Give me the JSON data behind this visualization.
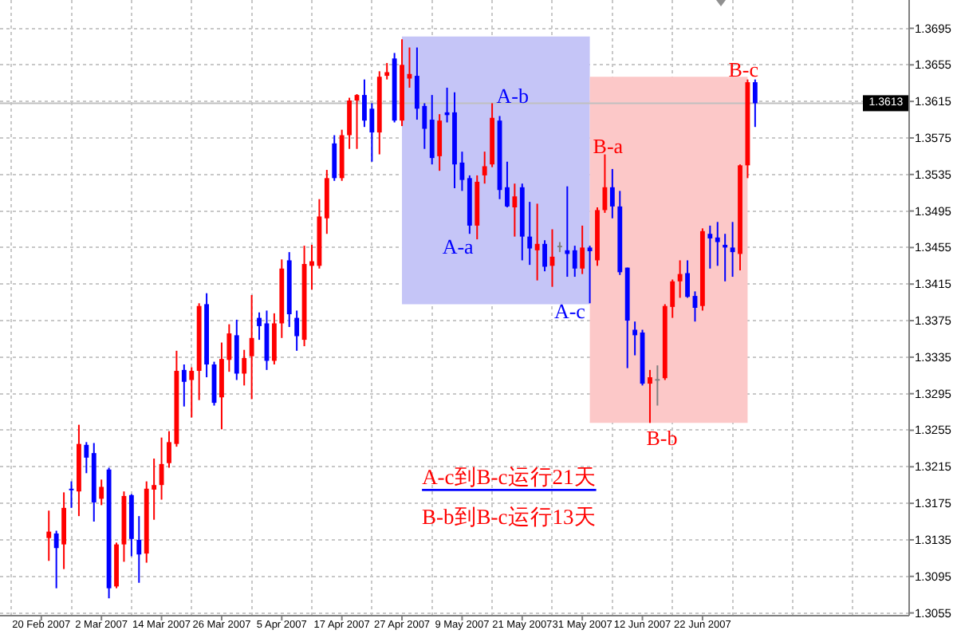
{
  "chart_data": {
    "type": "candlestick",
    "categories": [
      "20 Feb 2007",
      null,
      null,
      null,
      null,
      null,
      null,
      null,
      "2 Mar 2007",
      null,
      null,
      null,
      null,
      null,
      null,
      null,
      "14 Mar 2007",
      null,
      null,
      null,
      null,
      null,
      null,
      null,
      "26 Mar 2007",
      null,
      null,
      null,
      null,
      null,
      null,
      null,
      "5 Apr 2007",
      null,
      null,
      null,
      null,
      null,
      null,
      null,
      "17 Apr 2007",
      null,
      null,
      null,
      null,
      null,
      null,
      null,
      "27 Apr 2007",
      null,
      null,
      null,
      null,
      null,
      null,
      null,
      "9 May 2007",
      null,
      null,
      null,
      null,
      null,
      null,
      null,
      "21 May 2007",
      null,
      null,
      null,
      null,
      null,
      null,
      null,
      "31 May 2007",
      null,
      null,
      null,
      null,
      null,
      null,
      null,
      "12 Jun 2007",
      null,
      null,
      null,
      null,
      null,
      null,
      null,
      "22 Jun 2007",
      null,
      null,
      null,
      null,
      null,
      null,
      null,
      null,
      null,
      null,
      null,
      null,
      null,
      null,
      null,
      null,
      null,
      null,
      null,
      null,
      null,
      null,
      null,
      null,
      null,
      null,
      null
    ],
    "ohlc": [
      null,
      [
        1.3137,
        1.3167,
        1.3112,
        1.3144
      ],
      [
        1.3142,
        1.3145,
        1.3082,
        1.3126
      ],
      [
        1.313,
        1.3187,
        1.3103,
        1.317
      ],
      [
        1.3191,
        1.3199,
        1.317,
        1.319
      ],
      [
        1.3188,
        1.3261,
        1.3161,
        1.324
      ],
      [
        1.3239,
        1.3242,
        1.3208,
        1.3225
      ],
      [
        1.323,
        1.3241,
        1.3155,
        1.3176
      ],
      [
        1.318,
        1.3201,
        1.3173,
        1.3193
      ],
      [
        1.3212,
        1.3214,
        1.3071,
        1.3082
      ],
      [
        1.3084,
        1.3132,
        1.3082,
        1.313
      ],
      [
        1.313,
        1.3188,
        1.3111,
        1.3183
      ],
      [
        1.3184,
        1.3185,
        1.3117,
        1.3136
      ],
      [
        1.3135,
        1.3161,
        1.3088,
        1.3119
      ],
      [
        1.312,
        1.3199,
        1.311,
        1.3191
      ],
      [
        1.319,
        1.3224,
        1.3157,
        1.3195
      ],
      [
        1.3195,
        1.3247,
        1.3179,
        1.3218
      ],
      [
        1.3219,
        1.3254,
        1.3214,
        1.3242
      ],
      [
        1.324,
        1.3342,
        1.3237,
        1.332
      ],
      [
        1.3321,
        1.3327,
        1.3281,
        1.3308
      ],
      [
        1.331,
        1.3324,
        1.3269,
        1.332
      ],
      [
        1.332,
        1.3394,
        1.3288,
        1.3391
      ],
      [
        1.3393,
        1.3405,
        1.3313,
        1.3327
      ],
      [
        1.3327,
        1.333,
        1.3282,
        1.3285
      ],
      [
        1.3291,
        1.3351,
        1.3256,
        1.3333
      ],
      [
        1.3332,
        1.3371,
        1.3319,
        1.3361
      ],
      [
        1.3359,
        1.3376,
        1.331,
        1.3317
      ],
      [
        1.3317,
        1.3343,
        1.3304,
        1.3334
      ],
      [
        1.3336,
        1.3403,
        1.3289,
        1.3356
      ],
      [
        1.3378,
        1.3384,
        1.3354,
        1.3369
      ],
      [
        1.3372,
        1.3386,
        1.3321,
        1.3331
      ],
      [
        1.3331,
        1.3383,
        1.3327,
        1.3372
      ],
      [
        1.3372,
        1.3442,
        1.3356,
        1.3432
      ],
      [
        1.3441,
        1.345,
        1.3368,
        1.3382
      ],
      [
        1.3378,
        1.3386,
        1.3342,
        1.3358
      ],
      [
        1.3354,
        1.3457,
        1.3347,
        1.3437
      ],
      [
        1.3435,
        1.3458,
        1.3409,
        1.344
      ],
      [
        1.3435,
        1.3508,
        1.3432,
        1.3489
      ],
      [
        1.3487,
        1.354,
        1.347,
        1.3531
      ],
      [
        1.3569,
        1.3578,
        1.3528,
        1.3531
      ],
      [
        1.3531,
        1.3584,
        1.3528,
        1.3578
      ],
      [
        1.3578,
        1.3619,
        1.3563,
        1.3616
      ],
      [
        1.3616,
        1.3623,
        1.3563,
        1.3622
      ],
      [
        1.3622,
        1.3639,
        1.3587,
        1.3594
      ],
      [
        1.3607,
        1.3613,
        1.3549,
        1.3581
      ],
      [
        1.3581,
        1.3648,
        1.3557,
        1.3642
      ],
      [
        1.3643,
        1.3657,
        1.3639,
        1.3647
      ],
      [
        1.3662,
        1.3668,
        1.3592,
        1.3594
      ],
      [
        1.3594,
        1.3683,
        1.3588,
        1.3655
      ],
      [
        1.364,
        1.3674,
        1.363,
        1.3645
      ],
      [
        1.3643,
        1.3674,
        1.3595,
        1.3607
      ],
      [
        1.361,
        1.3613,
        1.3563,
        1.3585
      ],
      [
        1.3595,
        1.3622,
        1.3546,
        1.3553
      ],
      [
        1.3555,
        1.3601,
        1.3539,
        1.3594
      ],
      [
        1.3603,
        1.363,
        1.3592,
        1.36
      ],
      [
        1.3603,
        1.3625,
        1.352,
        1.3546
      ],
      [
        1.3548,
        1.356,
        1.3517,
        1.3529
      ],
      [
        1.3531,
        1.3534,
        1.347,
        1.3479
      ],
      [
        1.3479,
        1.3534,
        1.3464,
        1.3527
      ],
      [
        1.3534,
        1.356,
        1.3525,
        1.3544
      ],
      [
        1.3546,
        1.3613,
        1.3543,
        1.3597
      ],
      [
        1.3594,
        1.3599,
        1.3508,
        1.3518
      ],
      [
        1.3521,
        1.3549,
        1.3499,
        1.35
      ],
      [
        1.3499,
        1.3525,
        1.3467,
        1.3511
      ],
      [
        1.3521,
        1.3525,
        1.3441,
        1.3467
      ],
      [
        1.3467,
        1.3505,
        1.3436,
        1.3454
      ],
      [
        1.3452,
        1.3503,
        1.3419,
        1.3459
      ],
      [
        1.3459,
        1.3463,
        1.3429,
        1.3434
      ],
      [
        1.3435,
        1.3475,
        1.3412,
        1.3445
      ],
      [
        1.3457,
        1.3461,
        1.345,
        1.3457
      ],
      [
        1.3452,
        1.3522,
        1.3423,
        1.3448
      ],
      [
        1.3452,
        1.3457,
        1.3423,
        1.3432
      ],
      [
        1.3432,
        1.3479,
        1.3426,
        1.3455
      ],
      [
        1.3455,
        1.3457,
        1.3394,
        1.3451
      ],
      [
        1.3441,
        1.3499,
        1.3435,
        1.3496
      ],
      [
        1.3496,
        1.3557,
        1.3493,
        1.3521
      ],
      [
        1.3521,
        1.3541,
        1.3487,
        1.35
      ],
      [
        1.35,
        1.3517,
        1.3425,
        1.3428
      ],
      [
        1.3433,
        1.3433,
        1.3323,
        1.3375
      ],
      [
        1.3365,
        1.3374,
        1.3337,
        1.3359
      ],
      [
        1.3362,
        1.3365,
        1.3304,
        1.3306
      ],
      [
        1.3306,
        1.3321,
        1.3263,
        1.3313
      ],
      [
        1.3311,
        1.3326,
        1.3282,
        1.3311
      ],
      [
        1.3312,
        1.3393,
        1.331,
        1.3391
      ],
      [
        1.339,
        1.342,
        1.3378,
        1.3418
      ],
      [
        1.3418,
        1.3441,
        1.34,
        1.3426
      ],
      [
        1.3427,
        1.3441,
        1.34,
        1.3401
      ],
      [
        1.3402,
        1.3407,
        1.3374,
        1.3389
      ],
      [
        1.3391,
        1.3476,
        1.3386,
        1.3473
      ],
      [
        1.347,
        1.3479,
        1.3432,
        1.3465
      ],
      [
        1.3466,
        1.3483,
        1.3435,
        1.3461
      ],
      [
        1.3458,
        1.347,
        1.3418,
        1.3455
      ],
      [
        1.3455,
        1.3483,
        1.3423,
        1.345
      ],
      [
        1.3448,
        1.3546,
        1.343,
        1.3545
      ],
      [
        1.3545,
        1.3639,
        1.3531,
        1.3636
      ],
      [
        1.3636,
        1.3639,
        1.3587,
        1.3613
      ],
      null,
      null,
      null,
      null,
      null,
      null,
      null,
      null,
      null,
      null,
      null,
      null,
      null,
      null,
      null,
      null,
      null,
      null,
      null,
      null
    ],
    "colors": [
      null,
      "#ff0000",
      "#0000ff",
      "#ff0000",
      "#0000ff",
      "#ff0000",
      "#0000ff",
      "#0000ff",
      "#ff0000",
      "#0000ff",
      "#ff0000",
      "#ff0000",
      "#0000ff",
      "#0000ff",
      "#ff0000",
      "#ff0000",
      "#ff0000",
      "#ff0000",
      "#ff0000",
      "#0000ff",
      "#ff0000",
      "#ff0000",
      "#0000ff",
      "#0000ff",
      "#ff0000",
      "#ff0000",
      "#0000ff",
      "#ff0000",
      "#ff0000",
      "#0000ff",
      "#0000ff",
      "#ff0000",
      "#ff0000",
      "#0000ff",
      "#0000ff",
      "#ff0000",
      "#ff0000",
      "#ff0000",
      "#ff0000",
      "#0000ff",
      "#ff0000",
      "#ff0000",
      "#ff0000",
      "#0000ff",
      "#0000ff",
      "#ff0000",
      "#ff0000",
      "#0000ff",
      "#ff0000",
      "#ff0000",
      "#0000ff",
      "#0000ff",
      "#0000ff",
      "#ff0000",
      "#0000ff",
      "#0000ff",
      "#0000ff",
      "#0000ff",
      "#ff0000",
      "#ff0000",
      "#ff0000",
      "#0000ff",
      "#0000ff",
      "#ff0000",
      "#0000ff",
      "#0000ff",
      "#ff0000",
      "#0000ff",
      "#ff0000",
      "#808080",
      "#0000ff",
      "#0000ff",
      "#ff0000",
      "#0000ff",
      "#ff0000",
      "#ff0000",
      "#0000ff",
      "#0000ff",
      "#0000ff",
      "#0000ff",
      "#0000ff",
      "#ff0000",
      "#808080",
      "#ff0000",
      "#ff0000",
      "#ff0000",
      "#0000ff",
      "#0000ff",
      "#ff0000",
      "#0000ff",
      "#0000ff",
      "#0000ff",
      "#0000ff",
      "#ff0000",
      "#ff0000",
      "#0000ff",
      null,
      null,
      null,
      null,
      null,
      null,
      null,
      null,
      null,
      null,
      null,
      null,
      null,
      null,
      null,
      null,
      null,
      null,
      null,
      null
    ],
    "series": [
      {
        "type": "line",
        "color": "#c5c5f7",
        "values": [
          null,
          null,
          null,
          null,
          null,
          null,
          null,
          null,
          null,
          null,
          null,
          null,
          null,
          null,
          null,
          null,
          null,
          null,
          null,
          null,
          null,
          null,
          null,
          null,
          null,
          null,
          null,
          null,
          null,
          null,
          null,
          null,
          null,
          null,
          null,
          null,
          null,
          null,
          null,
          null,
          null,
          null,
          null,
          null,
          null,
          null,
          null,
          null,
          null,
          null,
          null,
          null,
          null,
          null,
          null,
          null,
          null,
          null,
          null,
          null,
          null,
          null,
          null,
          null,
          null,
          null,
          null,
          null,
          null,
          null,
          null,
          null,
          null,
          null,
          null,
          null,
          null,
          null,
          null,
          null,
          null,
          null,
          null,
          null,
          null,
          null,
          null,
          null,
          null,
          null,
          null,
          null,
          null,
          null,
          null,
          null,
          null,
          null,
          null,
          null,
          null,
          null,
          null,
          null,
          null,
          null,
          null,
          null,
          null,
          null,
          null,
          null,
          null,
          null,
          null,
          null
        ],
        "lower": [
          null,
          null,
          null,
          null,
          null,
          null,
          null,
          null,
          null,
          null,
          null,
          null,
          null,
          null,
          null,
          null,
          null,
          null,
          null,
          null,
          null,
          null,
          null,
          null,
          null,
          null,
          null,
          null,
          null,
          null,
          null,
          null,
          null,
          null,
          null,
          null,
          null,
          null,
          null,
          null,
          null,
          null,
          null,
          null,
          null,
          null,
          null,
          null,
          1.3393,
          1.3393,
          1.3393,
          1.3393,
          1.3393,
          1.3393,
          1.3393,
          1.3393,
          1.3393,
          1.3393,
          1.3393,
          1.3393,
          1.3393,
          1.3393,
          1.3393,
          1.3393,
          1.3393,
          1.3393,
          1.3393,
          1.3393,
          1.3393,
          1.3393,
          1.3393,
          1.3393,
          1.3393,
          1.3393,
          null,
          null,
          null,
          null,
          null,
          null,
          null,
          null,
          null,
          null,
          null,
          null,
          null,
          null,
          null,
          null,
          null,
          null,
          null,
          null,
          null,
          null,
          null,
          null,
          null,
          null,
          null,
          null,
          null,
          null,
          null,
          null,
          null,
          null,
          null,
          null,
          null,
          null,
          null,
          null,
          null,
          null
        ],
        "upper": [
          null,
          null,
          null,
          null,
          null,
          null,
          null,
          null,
          null,
          null,
          null,
          null,
          null,
          null,
          null,
          null,
          null,
          null,
          null,
          null,
          null,
          null,
          null,
          null,
          null,
          null,
          null,
          null,
          null,
          null,
          null,
          null,
          null,
          null,
          null,
          null,
          null,
          null,
          null,
          null,
          null,
          null,
          null,
          null,
          null,
          null,
          null,
          null,
          1.3686,
          1.3686,
          1.3686,
          1.3686,
          1.3686,
          1.3686,
          1.3686,
          1.3686,
          1.3686,
          1.3686,
          1.3686,
          1.3686,
          1.3686,
          1.3686,
          1.3686,
          1.3686,
          1.3686,
          1.3686,
          1.3686,
          1.3686,
          1.3686,
          1.3686,
          1.3686,
          1.3686,
          1.3686,
          1.3686,
          null,
          null,
          null,
          null,
          null,
          null,
          null,
          null,
          null,
          null,
          null,
          null,
          null,
          null,
          null,
          null,
          null,
          null,
          null,
          null,
          null,
          null,
          null,
          null,
          null,
          null,
          null,
          null,
          null,
          null,
          null,
          null,
          null,
          null,
          null,
          null,
          null,
          null,
          null,
          null,
          null,
          null
        ]
      },
      {
        "type": "line",
        "color": "#fcc8c8",
        "values": [
          null,
          null,
          null,
          null,
          null,
          null,
          null,
          null,
          null,
          null,
          null,
          null,
          null,
          null,
          null,
          null,
          null,
          null,
          null,
          null,
          null,
          null,
          null,
          null,
          null,
          null,
          null,
          null,
          null,
          null,
          null,
          null,
          null,
          null,
          null,
          null,
          null,
          null,
          null,
          null,
          null,
          null,
          null,
          null,
          null,
          null,
          null,
          null,
          null,
          null,
          null,
          null,
          null,
          null,
          null,
          null,
          null,
          null,
          null,
          null,
          null,
          null,
          null,
          null,
          null,
          null,
          null,
          null,
          null,
          null,
          null,
          null,
          null,
          null,
          null,
          null,
          null,
          null,
          null,
          null,
          null,
          null,
          null,
          null,
          null,
          null,
          null,
          null,
          null,
          null,
          null,
          null,
          null,
          null,
          null,
          null,
          null,
          null,
          null,
          null,
          null,
          null,
          null,
          null,
          null,
          null,
          null,
          null,
          null,
          null,
          null,
          null,
          null,
          null,
          null,
          null
        ],
        "lower": [
          null,
          null,
          null,
          null,
          null,
          null,
          null,
          null,
          null,
          null,
          null,
          null,
          null,
          null,
          null,
          null,
          null,
          null,
          null,
          null,
          null,
          null,
          null,
          null,
          null,
          null,
          null,
          null,
          null,
          null,
          null,
          null,
          null,
          null,
          null,
          null,
          null,
          null,
          null,
          null,
          null,
          null,
          null,
          null,
          null,
          null,
          null,
          null,
          null,
          null,
          null,
          null,
          null,
          null,
          null,
          null,
          null,
          null,
          null,
          null,
          null,
          null,
          null,
          null,
          null,
          null,
          null,
          null,
          null,
          null,
          null,
          null,
          null,
          1.3263,
          1.3263,
          1.3263,
          1.3263,
          1.3263,
          1.3263,
          1.3263,
          1.3263,
          1.3263,
          1.3263,
          1.3263,
          1.3263,
          1.3263,
          1.3263,
          1.3263,
          1.3263,
          1.3263,
          1.3263,
          1.3263,
          1.3263,
          1.3263,
          1.3263,
          null,
          null,
          null,
          null,
          null,
          null,
          null,
          null,
          null,
          null,
          null,
          null,
          null,
          null,
          null,
          null,
          null,
          null,
          null,
          null,
          null
        ],
        "upper": [
          null,
          null,
          null,
          null,
          null,
          null,
          null,
          null,
          null,
          null,
          null,
          null,
          null,
          null,
          null,
          null,
          null,
          null,
          null,
          null,
          null,
          null,
          null,
          null,
          null,
          null,
          null,
          null,
          null,
          null,
          null,
          null,
          null,
          null,
          null,
          null,
          null,
          null,
          null,
          null,
          null,
          null,
          null,
          null,
          null,
          null,
          null,
          null,
          null,
          null,
          null,
          null,
          null,
          null,
          null,
          null,
          null,
          null,
          null,
          null,
          null,
          null,
          null,
          null,
          null,
          null,
          null,
          null,
          null,
          null,
          null,
          null,
          null,
          1.3642,
          1.3642,
          1.3642,
          1.3642,
          1.3642,
          1.3642,
          1.3642,
          1.3642,
          1.3642,
          1.3642,
          1.3642,
          1.3642,
          1.3642,
          1.3642,
          1.3642,
          1.3642,
          1.3642,
          1.3642,
          1.3642,
          1.3642,
          1.3642,
          1.3642,
          null,
          null,
          null,
          null,
          null,
          null,
          null,
          null,
          null,
          null,
          null,
          null,
          null,
          null,
          null,
          null,
          null,
          null,
          null,
          null,
          null
        ]
      }
    ],
    "ylim": [
      1.3052,
      1.3726
    ],
    "yticks": [
      1.3055,
      1.3095,
      1.3135,
      1.3175,
      1.3215,
      1.3255,
      1.3295,
      1.3335,
      1.3375,
      1.3415,
      1.3455,
      1.3495,
      1.3535,
      1.3575,
      1.3615,
      1.3655,
      1.3695
    ],
    "grid": true,
    "ref_lines": [
      {
        "axis": "y",
        "value": 1.3613,
        "label": "1.3613",
        "color": "#c0c0c0"
      }
    ],
    "annotations": [
      "A-a",
      "A-b",
      "A-c",
      "B-a",
      "B-b",
      "B-c",
      "A-c到B-c运行21天",
      "B-b到B-c运行13天"
    ]
  }
}
